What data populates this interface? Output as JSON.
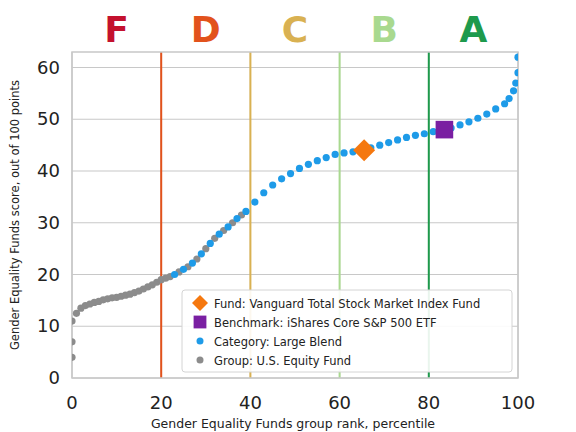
{
  "chart_data": {
    "type": "scatter",
    "x_label": "Gender Equality Funds group rank, percentile",
    "y_label": "Gender Equality Funds score, out of 100 points",
    "xlim": [
      0,
      100
    ],
    "ylim": [
      0,
      63
    ],
    "xticks": [
      0,
      20,
      40,
      60,
      80,
      100
    ],
    "yticks": [
      0,
      10,
      20,
      30,
      40,
      50,
      60
    ],
    "grid": true,
    "legend": "lower right",
    "grades": [
      {
        "label": "F",
        "color": "#c4112e",
        "from": 0,
        "to": 20
      },
      {
        "label": "D",
        "color": "#e2521c",
        "from": 20,
        "to": 40
      },
      {
        "label": "C",
        "color": "#d9b152",
        "from": 40,
        "to": 60
      },
      {
        "label": "B",
        "color": "#a9d98f",
        "from": 60,
        "to": 80
      },
      {
        "label": "A",
        "color": "#1e9a4c",
        "from": 80,
        "to": 100
      }
    ],
    "series": [
      {
        "name": "Group: U.S. Equity Fund",
        "color": "#8c8c8c",
        "marker": "circle",
        "x": [
          0,
          0,
          0,
          1,
          2,
          3,
          4,
          5,
          6,
          7,
          8,
          9,
          10,
          11,
          12,
          13,
          14,
          15,
          16,
          17,
          18,
          19,
          20,
          21,
          22,
          24,
          26,
          28,
          30,
          32,
          34,
          36,
          38
        ],
        "values": [
          4,
          7,
          11,
          12.5,
          13.5,
          14,
          14.3,
          14.6,
          14.8,
          15.1,
          15.3,
          15.5,
          15.6,
          15.8,
          16,
          16.2,
          16.5,
          16.8,
          17.2,
          17.6,
          18,
          18.5,
          19,
          19.3,
          19.6,
          20.5,
          21.5,
          23,
          25,
          27,
          28.5,
          30,
          31.5
        ]
      },
      {
        "name": "Category: Large Blend",
        "color": "#1e9be8",
        "marker": "circle",
        "x": [
          23,
          25,
          27,
          29,
          31,
          33,
          35,
          37,
          39,
          41,
          43,
          45,
          47,
          49,
          51,
          53,
          55,
          57,
          59,
          61,
          63,
          65,
          67,
          69,
          71,
          73,
          75,
          77,
          79,
          81,
          83,
          85,
          87,
          89,
          91,
          93,
          95,
          97,
          98,
          99,
          99.5,
          100,
          100
        ],
        "values": [
          20,
          21,
          22.2,
          24,
          26,
          27.8,
          29.2,
          30.8,
          32.2,
          34,
          35.8,
          37.3,
          38.5,
          39.5,
          40.5,
          41.3,
          42,
          42.6,
          43.2,
          43.5,
          43.7,
          44.1,
          44.5,
          45,
          45.5,
          46,
          46.5,
          46.9,
          47.2,
          47.6,
          47.9,
          48.3,
          48.9,
          49.5,
          50.2,
          51,
          52,
          53,
          54,
          55.5,
          57,
          59,
          62
        ]
      },
      {
        "name": "Fund: Vanguard Total Stock Market Index Fund",
        "color": "#f5780f",
        "marker": "diamond",
        "x": [
          65.5
        ],
        "values": [
          44
        ]
      },
      {
        "name": "Benchmark: iShares Core S&P 500 ETF",
        "color": "#7a1fa2",
        "marker": "square",
        "x": [
          83.5
        ],
        "values": [
          48
        ]
      }
    ]
  }
}
